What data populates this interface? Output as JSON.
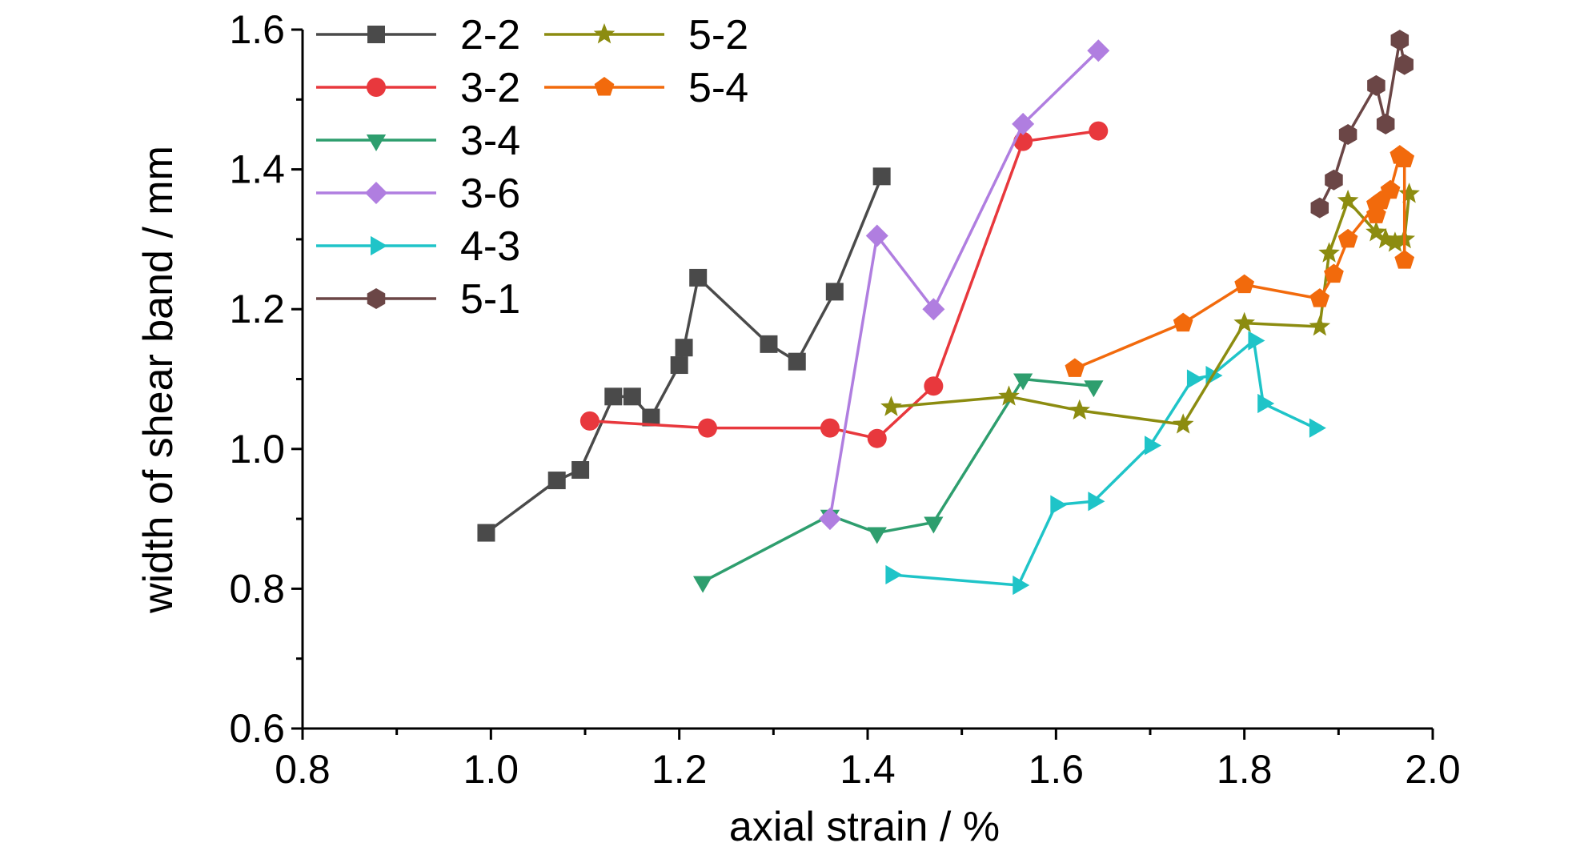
{
  "chart_data": {
    "type": "line",
    "xlabel": "axial strain / %",
    "ylabel": "width of shear band / mm",
    "xlim": [
      0.8,
      2.0
    ],
    "ylim": [
      0.6,
      1.6
    ],
    "xticks": [
      "0.8",
      "1.0",
      "1.2",
      "1.4",
      "1.6",
      "1.8",
      "2.0"
    ],
    "yticks": [
      "0.6",
      "0.8",
      "1.0",
      "1.2",
      "1.4",
      "1.6"
    ],
    "grid": false,
    "legend_position": "top-left",
    "series": [
      {
        "name": "2-2",
        "color": "#4a4a4a",
        "marker": "square",
        "x": [
          0.995,
          1.07,
          1.095,
          1.13,
          1.15,
          1.17,
          1.2,
          1.205,
          1.22,
          1.295,
          1.325,
          1.365,
          1.415
        ],
        "y": [
          0.88,
          0.955,
          0.97,
          1.075,
          1.075,
          1.045,
          1.12,
          1.145,
          1.245,
          1.15,
          1.125,
          1.225,
          1.39
        ]
      },
      {
        "name": "3-2",
        "color": "#e8383d",
        "marker": "circle",
        "x": [
          1.105,
          1.23,
          1.36,
          1.41,
          1.47,
          1.565,
          1.645
        ],
        "y": [
          1.04,
          1.03,
          1.03,
          1.015,
          1.09,
          1.44,
          1.455
        ]
      },
      {
        "name": "3-4",
        "color": "#2e9e6e",
        "marker": "triangle-down",
        "x": [
          1.225,
          1.36,
          1.41,
          1.47,
          1.565,
          1.64
        ],
        "y": [
          0.81,
          0.905,
          0.88,
          0.895,
          1.1,
          1.09
        ]
      },
      {
        "name": "3-6",
        "color": "#b07ee0",
        "marker": "diamond",
        "x": [
          1.36,
          1.41,
          1.47,
          1.565,
          1.645
        ],
        "y": [
          0.9,
          1.305,
          1.2,
          1.465,
          1.57
        ]
      },
      {
        "name": "4-3",
        "color": "#1fc4c8",
        "marker": "triangle-right",
        "x": [
          1.425,
          1.56,
          1.6,
          1.64,
          1.7,
          1.745,
          1.765,
          1.81,
          1.82,
          1.875
        ],
        "y": [
          0.82,
          0.805,
          0.92,
          0.925,
          1.005,
          1.1,
          1.105,
          1.155,
          1.065,
          1.03
        ]
      },
      {
        "name": "5-1",
        "color": "#6b4646",
        "marker": "hexagon",
        "x": [
          1.88,
          1.895,
          1.91,
          1.94,
          1.95,
          1.965,
          1.97
        ],
        "y": [
          1.345,
          1.385,
          1.45,
          1.52,
          1.465,
          1.585,
          1.55
        ]
      },
      {
        "name": "5-2",
        "color": "#8c8c10",
        "marker": "star",
        "x": [
          1.425,
          1.55,
          1.625,
          1.735,
          1.8,
          1.88,
          1.89,
          1.91,
          1.94,
          1.95,
          1.96,
          1.97,
          1.975
        ],
        "y": [
          1.06,
          1.075,
          1.055,
          1.035,
          1.18,
          1.175,
          1.28,
          1.355,
          1.31,
          1.3,
          1.295,
          1.3,
          1.365
        ]
      },
      {
        "name": "5-4",
        "color": "#f26a0c",
        "marker": "pentagon",
        "x": [
          1.62,
          1.735,
          1.8,
          1.88,
          1.895,
          1.91,
          1.94,
          1.94,
          1.945,
          1.955,
          1.965,
          1.97,
          1.97
        ],
        "y": [
          1.115,
          1.18,
          1.235,
          1.215,
          1.25,
          1.3,
          1.35,
          1.335,
          1.355,
          1.37,
          1.42,
          1.415,
          1.27
        ]
      }
    ]
  }
}
